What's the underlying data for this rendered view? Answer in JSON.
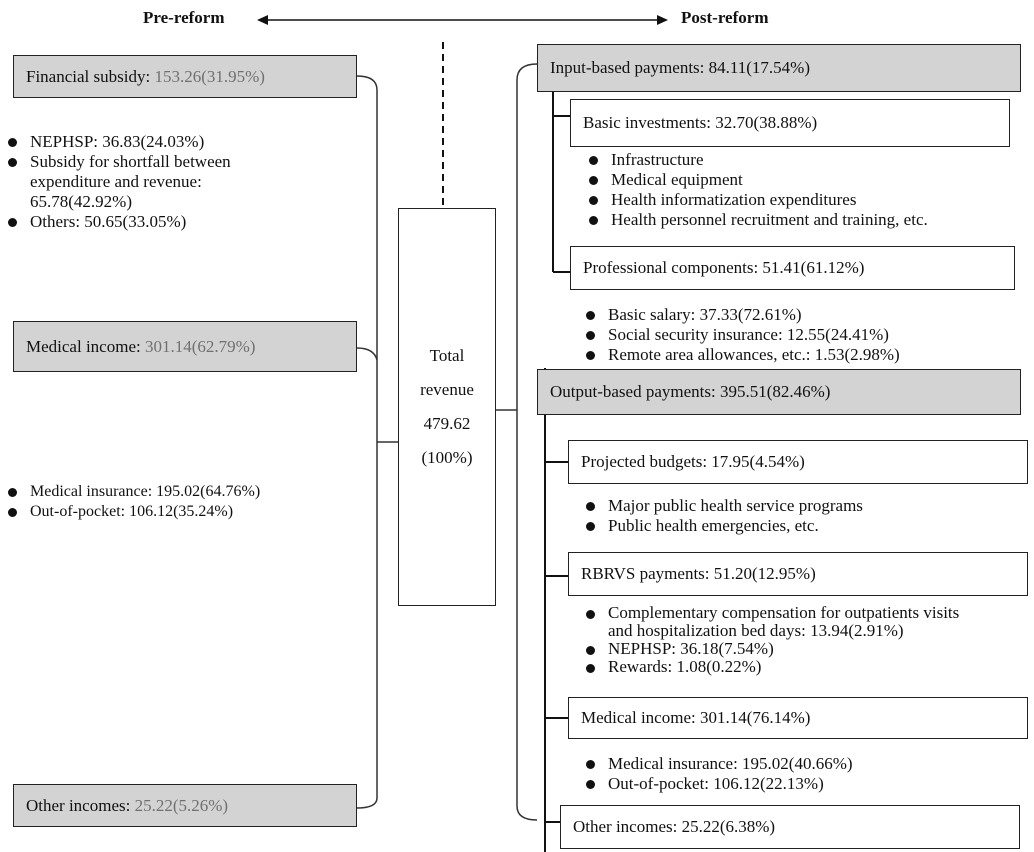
{
  "header": {
    "pre": "Pre-reform",
    "post": "Post-reform"
  },
  "total": {
    "l1": "Total",
    "l2": "revenue",
    "l3": "479.62",
    "l4": "(100%)"
  },
  "left": {
    "financial": {
      "label": "Financial subsidy:",
      "value": "153.26(31.95%)"
    },
    "financial_items": [
      {
        "text": "NEPHSP: 36.83(24.03%)"
      },
      {
        "text": "Subsidy for shortfall between",
        "cont": [
          "expenditure and revenue:",
          "65.78(42.92%)"
        ]
      },
      {
        "text": "Others: 50.65(33.05%)"
      }
    ],
    "medical": {
      "label": "Medical income:",
      "value": "301.14(62.79%)"
    },
    "medical_items": [
      "Medical insurance: 195.02(64.76%)",
      "Out-of-pocket: 106.12(35.24%)"
    ],
    "other": {
      "label": "Other incomes:",
      "value": "25.22(5.26%)"
    }
  },
  "right": {
    "input": "Input-based payments: 84.11(17.54%)",
    "basic": "Basic investments: 32.70(38.88%)",
    "basic_items": [
      "Infrastructure",
      "Medical equipment",
      "Health informatization expenditures",
      "Health personnel recruitment and training, etc."
    ],
    "professional": "Professional components: 51.41(61.12%)",
    "professional_items": [
      "Basic salary: 37.33(72.61%)",
      "Social security insurance: 12.55(24.41%)",
      "Remote area allowances, etc.: 1.53(2.98%)"
    ],
    "output": "Output-based payments: 395.51(82.46%)",
    "projected": "Projected budgets: 17.95(4.54%)",
    "projected_items": [
      "Major public health service programs",
      "Public health emergencies, etc."
    ],
    "rbrvs": "RBRVS payments: 51.20(12.95%)",
    "rbrvs_items": [
      {
        "text": "Complementary compensation for outpatients visits",
        "cont": [
          "and hospitalization bed days: 13.94(2.91%)"
        ]
      },
      {
        "text": "NEPHSP: 36.18(7.54%)"
      },
      {
        "text": "Rewards: 1.08(0.22%)"
      }
    ],
    "medical": "Medical income: 301.14(76.14%)",
    "medical_items": [
      "Medical insurance: 195.02(40.66%)",
      "Out-of-pocket: 106.12(22.13%)"
    ],
    "other": "Other incomes: 25.22(6.38%)"
  }
}
